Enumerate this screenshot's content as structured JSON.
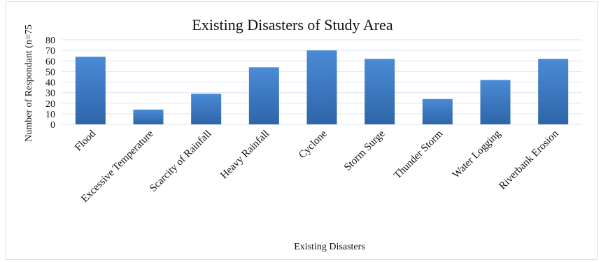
{
  "chart_data": {
    "type": "bar",
    "title": "Existing Disasters of Study Area",
    "xlabel": "Existing Disasters",
    "ylabel": "Number of Respondant (n=75",
    "ylim": [
      0,
      80
    ],
    "yticks": [
      0,
      10,
      20,
      30,
      40,
      50,
      60,
      70,
      80
    ],
    "grid": true,
    "categories": [
      "Flood",
      "Excessive Temperature",
      "Scarcity of Rainfall",
      "Heavy Rainfall",
      "Cyclone",
      "Storm Surge",
      "Thunder Storm",
      "Water Logging",
      "Riverbank Erosion"
    ],
    "values": [
      64,
      14,
      29,
      54,
      70,
      62,
      24,
      42,
      62
    ],
    "colors": {
      "bar_top": "#4a8bd6",
      "bar_bottom": "#2f65a8",
      "grid": "#dde6f0"
    }
  }
}
